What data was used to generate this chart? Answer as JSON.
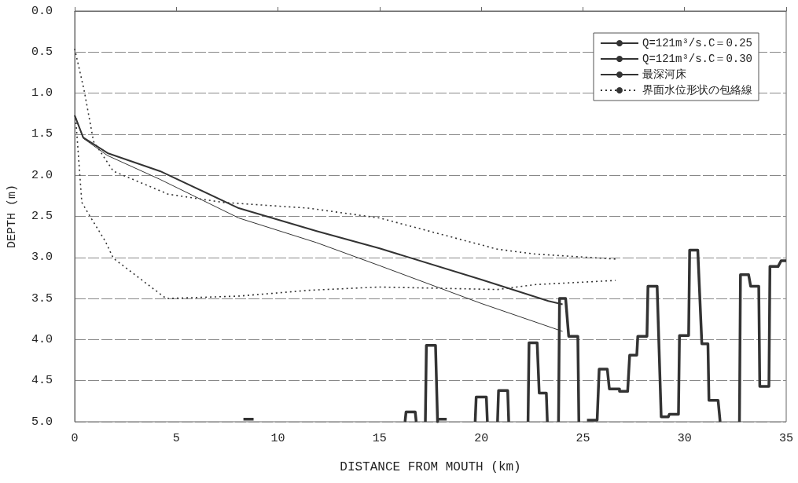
{
  "chart_data": {
    "type": "line",
    "xlabel": "DISTANCE FROM MOUTH (km)",
    "ylabel": "DEPTH (m)",
    "xlim": [
      0,
      35
    ],
    "xticks": [
      0,
      5,
      10,
      15,
      20,
      25,
      30,
      35
    ],
    "ylim": [
      5.0,
      0.0
    ],
    "yticks": [
      {
        "value": 0,
        "label": "0.0"
      },
      {
        "value": 0.5,
        "label": "0.5"
      },
      {
        "value": 1,
        "label": "1.0"
      },
      {
        "value": 1.5,
        "label": "1.5"
      },
      {
        "value": 2,
        "label": "2.0"
      },
      {
        "value": 2.5,
        "label": "2.5"
      },
      {
        "value": 3,
        "label": "3.0"
      },
      {
        "value": 3.5,
        "label": "3.5"
      },
      {
        "value": 4,
        "label": "4.0"
      },
      {
        "value": 4.5,
        "label": "4.5"
      },
      {
        "value": 5,
        "label": "5.0"
      }
    ],
    "grid": "y",
    "legend": "top right",
    "marker": "none",
    "series": [
      {
        "name": "Q=121m³/s.C＝0.25",
        "color": "#333333",
        "line_style": "solid",
        "x": [
          0,
          0.42,
          1.62,
          4.2,
          8.07,
          11.9,
          15,
          20,
          23.3,
          24
        ],
        "values": [
          1.27,
          1.54,
          1.73,
          1.95,
          2.4,
          2.68,
          2.89,
          3.27,
          3.53,
          3.57
        ]
      },
      {
        "name": "Q=121m³/s.C＝0.30",
        "color": "#333333",
        "line_style": "solid",
        "x": [
          0,
          0.42,
          1.62,
          4.2,
          8.07,
          11.9,
          15,
          20,
          24
        ],
        "values": [
          1.27,
          1.55,
          1.76,
          2.05,
          2.52,
          2.82,
          3.1,
          3.56,
          3.9
        ]
      },
      {
        "name": "最深河床",
        "color": "#333333",
        "line_style": "solid",
        "x": [
          8.3,
          8.8,
          12,
          16.25,
          16.3,
          16.75,
          16.8,
          17,
          17.25,
          17.3,
          17.75,
          17.85,
          17.85,
          18.3,
          19,
          19.7,
          19.75,
          20.25,
          20.3,
          20.5,
          20.8,
          20.85,
          21.3,
          21.35,
          21.8,
          22.3,
          22.35,
          22.75,
          22.85,
          23.2,
          23.25,
          23.5,
          23.8,
          23.85,
          24.15,
          24.3,
          24.75,
          24.8,
          25,
          25.2,
          25.7,
          25.8,
          26.2,
          26.3,
          26.8,
          26.8,
          27.2,
          27.3,
          27.65,
          27.7,
          28.15,
          28.2,
          28.65,
          28.85,
          29.2,
          29.25,
          29.7,
          29.75,
          30.2,
          30.25,
          30.65,
          30.85,
          31.15,
          31.2,
          31.65,
          31.75,
          32.2,
          32.7,
          32.75,
          33.15,
          33.25,
          33.65,
          33.7,
          34.15,
          34.2,
          34.6,
          34.75,
          35
        ],
        "values": [
          4.97,
          4.97,
          null,
          5.0,
          4.88,
          4.88,
          5.0,
          null,
          5.0,
          4.07,
          4.07,
          5.0,
          4.97,
          4.97,
          null,
          5.0,
          4.7,
          4.7,
          5.0,
          null,
          5.0,
          4.62,
          4.62,
          5.0,
          null,
          5.0,
          4.04,
          4.04,
          4.65,
          4.65,
          5.0,
          null,
          5.0,
          3.5,
          3.5,
          3.96,
          3.96,
          5.0,
          null,
          4.98,
          4.98,
          4.36,
          4.36,
          4.6,
          4.6,
          4.63,
          4.63,
          4.19,
          4.19,
          3.96,
          3.96,
          3.35,
          3.35,
          4.94,
          4.94,
          4.91,
          4.91,
          3.95,
          3.95,
          2.91,
          2.91,
          4.05,
          4.05,
          4.74,
          4.74,
          5.0,
          null,
          5.0,
          3.21,
          3.21,
          3.35,
          3.35,
          4.57,
          4.57,
          3.11,
          3.11,
          3.04,
          3.04
        ]
      },
      {
        "name": "界面水位形状の包絡線",
        "color": "#333333",
        "line_style": "dotted",
        "x": [
          0,
          0.46,
          0.93,
          1.9,
          4.6,
          7.3,
          11.5,
          15.0,
          20.8,
          22.7,
          26.6
        ],
        "values": [
          0.46,
          0.96,
          1.59,
          1.95,
          2.23,
          2.33,
          2.4,
          2.52,
          2.9,
          2.96,
          3.02
        ]
      },
      {
        "color": "#333333",
        "line_style": "dotted",
        "x": [
          0.05,
          0.35,
          0.73,
          1.5,
          1.9,
          4.5,
          8.1,
          11.5,
          15.0,
          20.8,
          22.7,
          26.6
        ],
        "values": [
          1.3,
          2.33,
          2.49,
          2.8,
          3.01,
          3.5,
          3.47,
          3.4,
          3.36,
          3.39,
          3.33,
          3.28
        ]
      }
    ]
  }
}
